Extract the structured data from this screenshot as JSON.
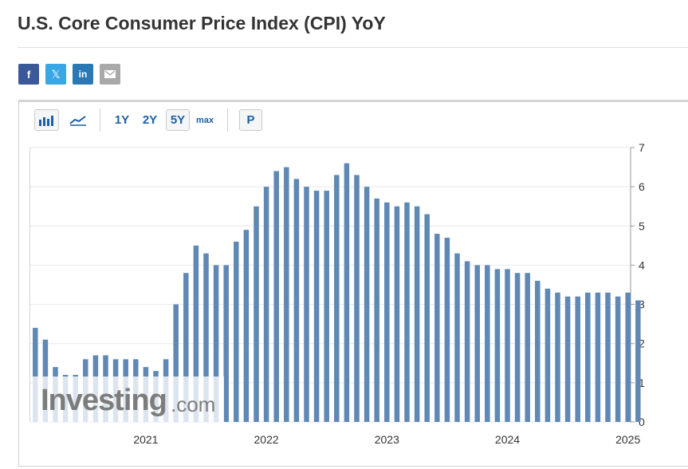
{
  "page": {
    "title": "U.S. Core Consumer Price Index (CPI) YoY"
  },
  "share": {
    "facebook_icon": "f",
    "twitter_icon": "𝕏",
    "linkedin_icon": "in",
    "email_icon": "envelope"
  },
  "toolbar": {
    "bar_chart_icon": "bar-chart",
    "line_chart_icon": "line-chart",
    "range_1y": "1Y",
    "range_2y": "2Y",
    "range_5y": "5Y",
    "range_max": "max",
    "print_label": "P",
    "active_range": "5Y"
  },
  "watermark": {
    "brand": "Investing",
    "suffix": ".com"
  },
  "colors": {
    "bar": "#5f88b5",
    "grid": "#e9e9e9",
    "axis_text": "#333333",
    "accent": "#1b5fa6"
  },
  "chart_data": {
    "type": "bar",
    "title": "U.S. Core Consumer Price Index (CPI) YoY",
    "xlabel": "",
    "ylabel": "",
    "ylim": [
      0,
      7
    ],
    "y_ticks": [
      "0",
      "1",
      "2",
      "3",
      "4",
      "5",
      "6",
      "7"
    ],
    "y_axis_side": "right",
    "grid": true,
    "x_tick_labels": [
      {
        "label": "2021",
        "at_month": "2021-01"
      },
      {
        "label": "2022",
        "at_month": "2022-01"
      },
      {
        "label": "2023",
        "at_month": "2023-01"
      },
      {
        "label": "2024",
        "at_month": "2024-01"
      },
      {
        "label": "2025",
        "at_month": "2025-01"
      }
    ],
    "categories": [
      "2020-04",
      "2020-05",
      "2020-06",
      "2020-07",
      "2020-08",
      "2020-09",
      "2020-10",
      "2020-11",
      "2020-12",
      "2021-01",
      "2021-02",
      "2021-03",
      "2021-04",
      "2021-05",
      "2021-06",
      "2021-07",
      "2021-08",
      "2021-09",
      "2021-10",
      "2021-11",
      "2021-12",
      "2022-01",
      "2022-02",
      "2022-03",
      "2022-04",
      "2022-05",
      "2022-06",
      "2022-07",
      "2022-08",
      "2022-09",
      "2022-10",
      "2022-11",
      "2022-12",
      "2023-01",
      "2023-02",
      "2023-03",
      "2023-04",
      "2023-05",
      "2023-06",
      "2023-07",
      "2023-08",
      "2023-09",
      "2023-10",
      "2023-11",
      "2023-12",
      "2024-01",
      "2024-02",
      "2024-03",
      "2024-04",
      "2024-05",
      "2024-06",
      "2024-07",
      "2024-08",
      "2024-09",
      "2024-10",
      "2024-11",
      "2024-12",
      "2025-01",
      "2025-02"
    ],
    "values": [
      1.4,
      1.2,
      1.2,
      1.6,
      1.7,
      1.7,
      1.6,
      1.6,
      1.6,
      1.4,
      1.3,
      1.6,
      3.0,
      3.8,
      4.5,
      4.3,
      4.0,
      4.0,
      4.6,
      4.9,
      5.5,
      6.0,
      6.4,
      6.5,
      6.2,
      6.0,
      5.9,
      5.9,
      6.3,
      6.6,
      6.3,
      6.0,
      5.7,
      5.6,
      5.5,
      5.6,
      5.5,
      5.3,
      4.8,
      4.7,
      4.3,
      4.1,
      4.0,
      4.0,
      3.9,
      3.9,
      3.8,
      3.8,
      3.6,
      3.4,
      3.3,
      3.2,
      3.2,
      3.3,
      3.3,
      3.3,
      3.2,
      3.3,
      3.1
    ],
    "leading_values_before_first_category": [
      2.4,
      2.1
    ]
  }
}
